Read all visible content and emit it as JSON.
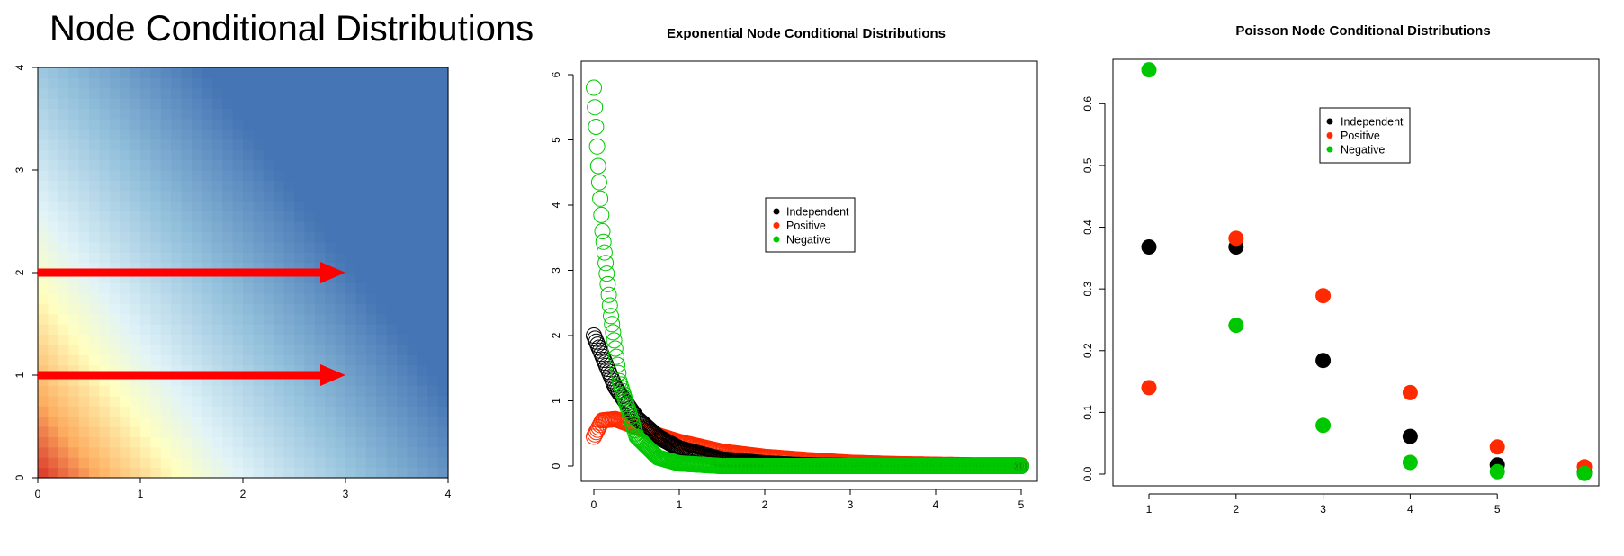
{
  "page_title": "Node Conditional Distributions",
  "colors": {
    "black": "#000000",
    "red": "#ff2a00",
    "green": "#00c800",
    "arrow": "#ff0000",
    "heat_low": "#4575b4",
    "heat_mid": "#ffffbf",
    "heat_high": "#d73027"
  },
  "chart_data": [
    {
      "type": "heatmap",
      "title": "",
      "x_ticks": [
        "0",
        "1",
        "2",
        "3",
        "4"
      ],
      "y_ticks": [
        "0",
        "1",
        "2",
        "3",
        "4"
      ],
      "xlim": [
        0,
        4
      ],
      "ylim": [
        0,
        4
      ],
      "grid_cells": 40,
      "annotations": [
        {
          "type": "arrow",
          "from": [
            0,
            2
          ],
          "to": [
            3,
            2
          ]
        },
        {
          "type": "arrow",
          "from": [
            0,
            1
          ],
          "to": [
            3,
            1
          ]
        }
      ]
    },
    {
      "type": "scatter",
      "title": "Exponential Node Conditional Distributions",
      "x_ticks": [
        "0",
        "1",
        "2",
        "3",
        "4",
        "5"
      ],
      "y_ticks": [
        "0",
        "1",
        "2",
        "3",
        "4",
        "5",
        "6"
      ],
      "xlim": [
        0,
        5
      ],
      "ylim": [
        0,
        6
      ],
      "marker": "open-circle",
      "legend": [
        "Independent",
        "Positive",
        "Negative"
      ],
      "series": [
        {
          "name": "Independent",
          "color": "#000000",
          "x": [
            0,
            0.25,
            0.5,
            0.75,
            1,
            1.5,
            2,
            2.5,
            3,
            3.5,
            4,
            4.5,
            5
          ],
          "y": [
            2.0,
            1.21,
            0.74,
            0.45,
            0.27,
            0.1,
            0.04,
            0.01,
            0.0,
            0.0,
            0.0,
            0.0,
            0.0
          ]
        },
        {
          "name": "Positive",
          "color": "#ff2a00",
          "x": [
            0,
            0.1,
            0.25,
            0.5,
            0.75,
            1,
            1.5,
            2,
            2.5,
            3,
            3.5,
            4,
            4.5,
            5
          ],
          "y": [
            0.45,
            0.7,
            0.72,
            0.6,
            0.47,
            0.37,
            0.22,
            0.14,
            0.09,
            0.05,
            0.03,
            0.02,
            0.01,
            0.01
          ]
        },
        {
          "name": "Negative",
          "color": "#00c800",
          "x": [
            0,
            0.05,
            0.1,
            0.2,
            0.3,
            0.5,
            0.75,
            1,
            1.5,
            2,
            3,
            4,
            5
          ],
          "y": [
            5.8,
            4.6,
            3.6,
            2.3,
            1.3,
            0.45,
            0.13,
            0.04,
            0.0,
            0.0,
            0.0,
            0.0,
            0.0
          ]
        }
      ]
    },
    {
      "type": "scatter",
      "title": "Poisson Node Conditional Distributions",
      "x_ticks": [
        "1",
        "2",
        "3",
        "4",
        "5"
      ],
      "y_ticks": [
        "0.0",
        "0.1",
        "0.2",
        "0.3",
        "0.4",
        "0.5",
        "0.6"
      ],
      "xlim": [
        1,
        6
      ],
      "ylim": [
        0,
        0.65
      ],
      "marker": "filled-circle",
      "legend": [
        "Independent",
        "Positive",
        "Negative"
      ],
      "series": [
        {
          "name": "Independent",
          "color": "#000000",
          "x": [
            1,
            2,
            3,
            4,
            5,
            6
          ],
          "y": [
            0.368,
            0.368,
            0.184,
            0.061,
            0.015,
            0.003
          ]
        },
        {
          "name": "Positive",
          "color": "#ff2a00",
          "x": [
            1,
            2,
            3,
            4,
            5,
            6
          ],
          "y": [
            0.14,
            0.382,
            0.289,
            0.132,
            0.044,
            0.012
          ]
        },
        {
          "name": "Negative",
          "color": "#00c800",
          "x": [
            1,
            2,
            3,
            4,
            5,
            6
          ],
          "y": [
            0.655,
            0.241,
            0.079,
            0.019,
            0.004,
            0.001
          ]
        }
      ]
    }
  ]
}
